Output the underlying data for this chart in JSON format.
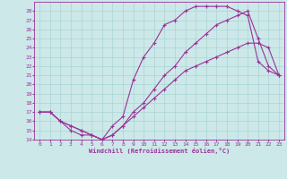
{
  "xlabel": "Windchill (Refroidissement éolien,°C)",
  "bg_color": "#cce8e8",
  "line_color": "#993399",
  "grid_color": "#aad4d4",
  "line1_x": [
    0,
    1,
    2,
    3,
    4,
    5,
    6,
    7,
    8,
    9,
    10,
    11,
    12,
    13,
    14,
    15,
    16,
    17,
    18,
    19,
    20,
    21,
    22,
    23
  ],
  "line1_y": [
    17.0,
    17.0,
    16.0,
    15.0,
    14.5,
    14.5,
    14.0,
    15.5,
    16.5,
    20.5,
    23.0,
    24.5,
    26.5,
    27.0,
    28.0,
    28.5,
    28.5,
    28.5,
    28.5,
    28.0,
    27.5,
    22.5,
    21.5,
    21.0
  ],
  "line2_x": [
    0,
    1,
    2,
    3,
    4,
    5,
    6,
    7,
    8,
    9,
    10,
    11,
    12,
    13,
    14,
    15,
    16,
    17,
    18,
    19,
    20,
    21,
    22,
    23
  ],
  "line2_y": [
    17.0,
    17.0,
    16.0,
    15.5,
    15.0,
    14.5,
    14.0,
    14.5,
    15.5,
    17.0,
    18.0,
    19.5,
    21.0,
    22.0,
    23.5,
    24.5,
    25.5,
    26.5,
    27.0,
    27.5,
    28.0,
    25.0,
    22.0,
    21.0
  ],
  "line3_x": [
    0,
    1,
    2,
    3,
    4,
    5,
    6,
    7,
    8,
    9,
    10,
    11,
    12,
    13,
    14,
    15,
    16,
    17,
    18,
    19,
    20,
    21,
    22,
    23
  ],
  "line3_y": [
    17.0,
    17.0,
    16.0,
    15.5,
    15.0,
    14.5,
    14.0,
    14.5,
    15.5,
    16.5,
    17.5,
    18.5,
    19.5,
    20.5,
    21.5,
    22.0,
    22.5,
    23.0,
    23.5,
    24.0,
    24.5,
    24.5,
    24.0,
    21.0
  ],
  "xlim": [
    -0.5,
    23.5
  ],
  "ylim": [
    14,
    29
  ],
  "xticks": [
    0,
    1,
    2,
    3,
    4,
    5,
    6,
    7,
    8,
    9,
    10,
    11,
    12,
    13,
    14,
    15,
    16,
    17,
    18,
    19,
    20,
    21,
    22,
    23
  ],
  "yticks": [
    14,
    15,
    16,
    17,
    18,
    19,
    20,
    21,
    22,
    23,
    24,
    25,
    26,
    27,
    28
  ],
  "marker": "+",
  "markersize": 3,
  "linewidth": 0.8
}
